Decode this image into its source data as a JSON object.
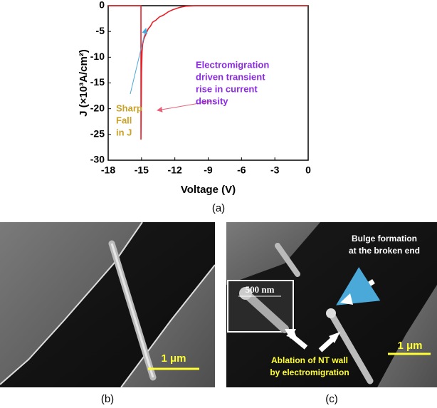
{
  "chart_data": {
    "type": "line",
    "x": [
      -18,
      -15.05,
      -15.05,
      -15,
      -14.95,
      -14.9,
      -14.8,
      -14.6,
      -14.4,
      -14.2,
      -14,
      -13.7,
      -13.4,
      -13,
      -12.6,
      -12.2,
      -11.8,
      -11.5,
      -11,
      -10,
      -9,
      0
    ],
    "values": [
      0,
      0,
      -26,
      -13,
      -9,
      -7.5,
      -6.5,
      -5.5,
      -4.5,
      -4,
      -3.2,
      -2.8,
      -2.2,
      -1.8,
      -1.2,
      -0.8,
      -0.5,
      -0.3,
      -0.1,
      0,
      0,
      0
    ],
    "color": "#e8202a",
    "xlim": [
      -18,
      0
    ],
    "ylim": [
      -30,
      0
    ],
    "xticks": [
      -18,
      -15,
      -12,
      -9,
      -6,
      -3,
      0
    ],
    "yticks": [
      0,
      -5,
      -10,
      -15,
      -20,
      -25,
      -30
    ],
    "xlabel": "Voltage (V)",
    "ylabel": "J (×10³A/cm²)",
    "annotations": [
      {
        "lines": [
          "Sharp",
          "Fall",
          "in J"
        ],
        "color": "#c9a227"
      },
      {
        "lines": [
          "Electromigration",
          "driven transient",
          "rise in current",
          "density"
        ],
        "color": "#8a2be2"
      }
    ],
    "caption": "(a)"
  },
  "panels": [
    {
      "caption": "(b)",
      "scale_bar": "1 μm"
    },
    {
      "caption": "(c)",
      "scale_bar": "1 μm",
      "inset_scale": "500 nm",
      "labels": [
        [
          "Bulge formation",
          "at the broken end"
        ],
        [
          "Ablation of NT wall",
          "by electromigration"
        ]
      ]
    }
  ]
}
